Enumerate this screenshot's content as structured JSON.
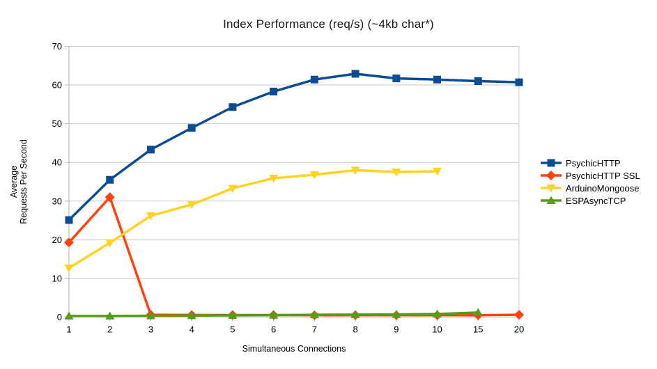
{
  "chart_data": {
    "type": "line",
    "title": "Index Performance (req/s) (~4kb char*)",
    "xlabel": "Simultaneous Connections",
    "ylabel_lines": [
      "Average",
      "Requests Per Second"
    ],
    "categories": [
      "1",
      "2",
      "3",
      "4",
      "5",
      "6",
      "7",
      "8",
      "9",
      "10",
      "15",
      "20"
    ],
    "ylim": [
      0,
      70
    ],
    "yticks": [
      0,
      10,
      20,
      30,
      40,
      50,
      60,
      70
    ],
    "grid": "horizontal",
    "legend_position": "right",
    "series": [
      {
        "name": "PsychicHTTP",
        "color": "#0C4C94",
        "marker": "square",
        "values": [
          25.1,
          35.5,
          43.3,
          48.9,
          54.3,
          58.3,
          61.4,
          62.9,
          61.7,
          61.4,
          61.0,
          60.7
        ]
      },
      {
        "name": "PsychicHTTP SSL",
        "color": "#FF420E",
        "marker": "diamond",
        "values": [
          19.3,
          31.0,
          0.6,
          0.55,
          0.55,
          0.55,
          0.5,
          0.5,
          0.5,
          0.5,
          0.5,
          0.6
        ]
      },
      {
        "name": "ArduinoMongoose",
        "color": "#FFD320",
        "marker": "triangle-down",
        "values": [
          12.7,
          19.2,
          26.2,
          29.1,
          33.3,
          35.9,
          36.8,
          38.0,
          37.5,
          37.7
        ]
      },
      {
        "name": "ESPAsyncTCP",
        "color": "#579D1C",
        "marker": "triangle-up",
        "values": [
          0.3,
          0.3,
          0.35,
          0.4,
          0.45,
          0.5,
          0.6,
          0.65,
          0.7,
          0.8,
          1.2
        ]
      }
    ],
    "colors": {
      "background": "#FFFFFF",
      "grid": "#C9C9C9",
      "axis": "#B0B0B0",
      "text": "#000000"
    }
  }
}
